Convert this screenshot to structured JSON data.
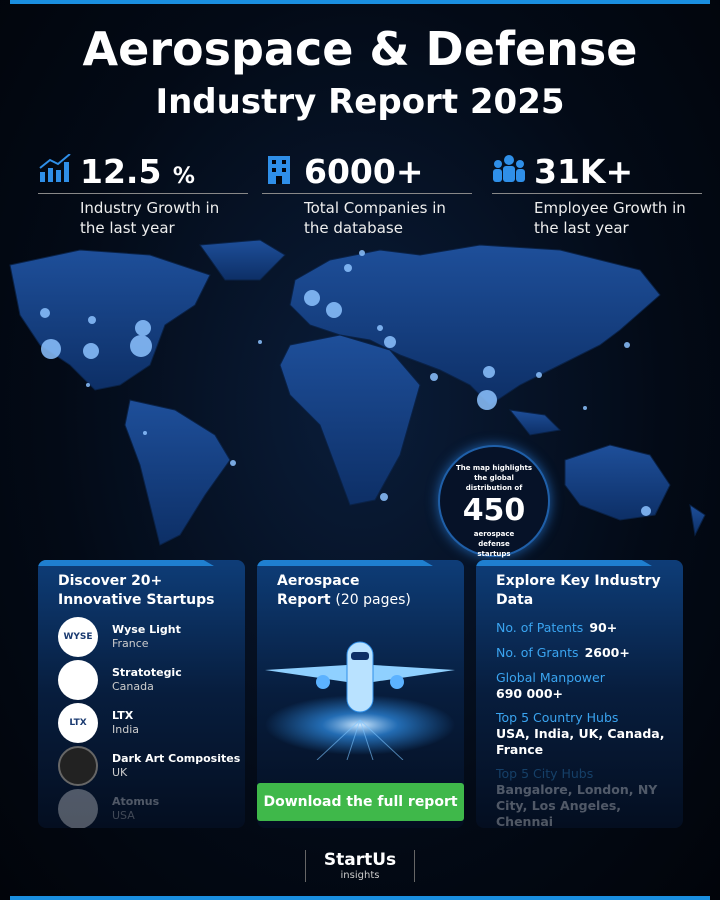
{
  "header": {
    "title": "Aerospace & Defense",
    "subtitle": "Industry Report 2025"
  },
  "stats": [
    {
      "value": "12.5",
      "unit": "%",
      "label": "Industry Growth in the last year"
    },
    {
      "value": "6000+",
      "label": "Total Companies in the database"
    },
    {
      "value": "31K+",
      "label": "Employee Growth in the last year"
    }
  ],
  "map_callout": {
    "intro": "The map highlights the global distribution of",
    "number": "450",
    "outro": "aerospace defense startups"
  },
  "startups_card": {
    "title": "Discover 20+ Innovative Startups",
    "startups": [
      {
        "logo": "WYSE",
        "name": "Wyse Light",
        "country": "France"
      },
      {
        "name": "Stratotegic",
        "country": "Canada"
      },
      {
        "logo": "LTX",
        "name": "LTX",
        "country": "India"
      },
      {
        "name": "Dark Art Composites",
        "country": "UK"
      },
      {
        "name": "Atomus",
        "country": "USA"
      }
    ]
  },
  "report_card": {
    "title_bold": "Aerospace",
    "title_bold2": "Report",
    "title_rest": "(20 pages)",
    "button": "Download the full report"
  },
  "data_card": {
    "title": "Explore Key Industry Data",
    "items": [
      {
        "label": "No. of Patents",
        "value": "90+"
      },
      {
        "label": "No. of Grants",
        "value": "2600+"
      },
      {
        "label": "Global Manpower",
        "value": "690 000+"
      },
      {
        "label": "Top 5 Country Hubs",
        "value": "USA, India, UK, Canada, France"
      },
      {
        "label": "Top 5 City Hubs",
        "value": "Bangalore, London, NY City, Los Angeles, Chennai"
      }
    ]
  },
  "footer": {
    "brand": "StartUs",
    "sub": "insights"
  }
}
